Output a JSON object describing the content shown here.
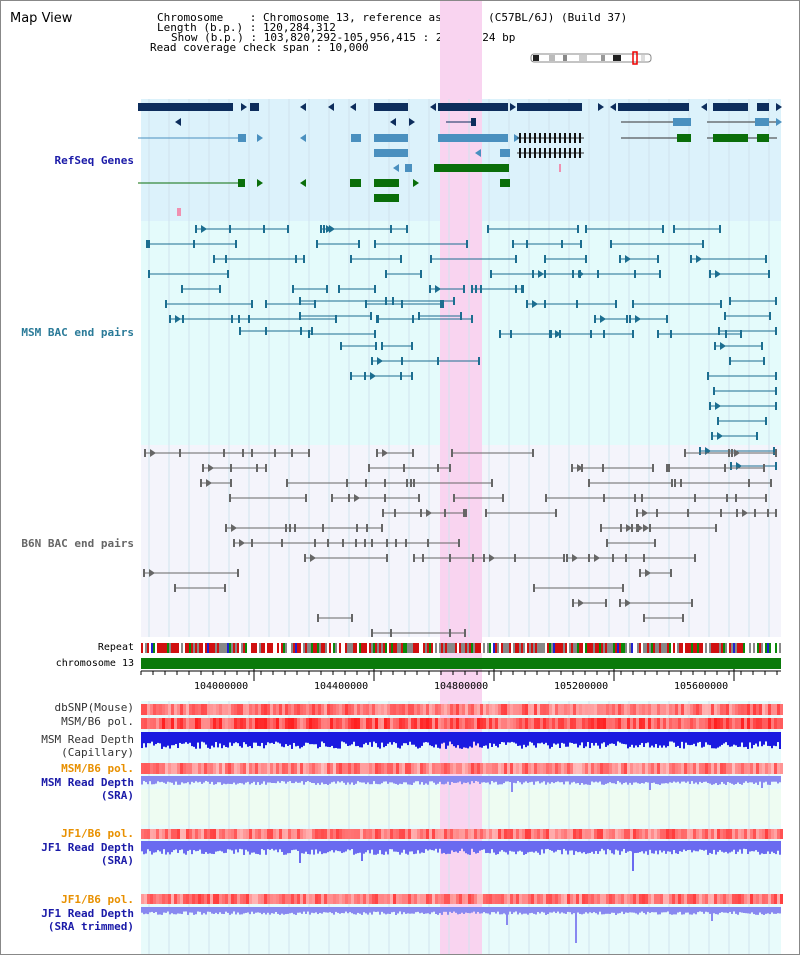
{
  "header": {
    "title": "Map View",
    "chromosome_label": "Chromosome",
    "chromosome_value": "Chromosome 13, reference assembly (C57BL/6J) (Build 37)",
    "length_label": "Length (b.p.)",
    "length_value": "120,284,312",
    "show_label": "Show (b.p.)",
    "show_value": "103,820,292-105,956,415 : 2,136,124 bp",
    "coverage_label": "Read coverage check span",
    "coverage_value": "10,000"
  },
  "tracks": {
    "refseq": "RefSeq Genes",
    "msm_bac": "MSM BAC end pairs",
    "b6n_bac": "B6N BAC end pairs",
    "repeat": "Repeat",
    "chromosome": "chromosome 13",
    "dbsnp": "dbSNP(Mouse)",
    "msm_b6_pol_1": "MSM/B6 pol.",
    "msm_depth_cap_1": "MSM Read Depth",
    "msm_depth_cap_2": "(Capillary)",
    "msm_b6_pol_2": "MSM/B6 pol.",
    "msm_depth_sra_1": "MSM Read Depth",
    "msm_depth_sra_2": "(SRA)",
    "jf1_b6_pol_1": "JF1/B6 pol.",
    "jf1_depth_sra_1": "JF1 Read Depth",
    "jf1_depth_sra_2": "(SRA)",
    "jf1_b6_pol_2": "JF1/B6 pol.",
    "jf1_depth_trim_1": "JF1 Read Depth",
    "jf1_depth_trim_2": "(SRA trimmed)"
  },
  "axis": {
    "positions": [
      "104000000",
      "104400000",
      "104800000",
      "105200000",
      "105600000"
    ]
  },
  "colors": {
    "refseq_bg": "#dcf2fb",
    "msm_bg": "#e4fbfb",
    "b6n_bg": "#f4f4fb",
    "highlight": "#f9d4f0",
    "dark_gene": "#0d2d5c",
    "mid_gene": "#4a90bf",
    "green_gene": "#0a6e0a",
    "msm_pair": "#1c6e90",
    "b6n_pair": "#666666",
    "chromosome": "#0a7a0a",
    "depth_blue": "#1a1ae0",
    "depth_light": "#8888f0"
  }
}
